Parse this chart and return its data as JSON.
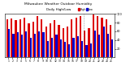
{
  "title": "Milwaukee Weather Outdoor Humidity",
  "subtitle": "Daily High/Low",
  "high_values": [
    88,
    90,
    85,
    88,
    92,
    78,
    82,
    95,
    88,
    72,
    78,
    85,
    75,
    68,
    72,
    88,
    92,
    95,
    62,
    68,
    98,
    95,
    92,
    88,
    75
  ],
  "low_values": [
    65,
    55,
    58,
    52,
    60,
    45,
    55,
    60,
    58,
    38,
    45,
    52,
    42,
    35,
    30,
    45,
    48,
    38,
    28,
    32,
    62,
    52,
    72,
    55,
    42
  ],
  "high_color": "#dd0000",
  "low_color": "#0000cc",
  "bg_color": "#ffffff",
  "plot_bg": "#ffffff",
  "ylim": [
    0,
    100
  ],
  "yticks": [
    20,
    40,
    60,
    80,
    100
  ],
  "dashed_line_x": 18,
  "n_bars": 25
}
